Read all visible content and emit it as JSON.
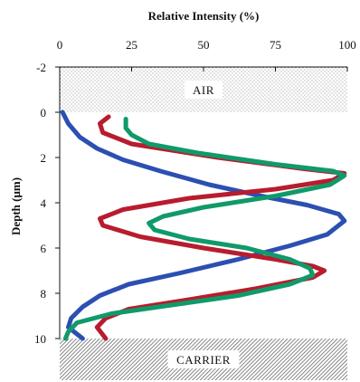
{
  "chart_data": {
    "type": "line",
    "title": "",
    "xlabel": "Relative Intensity (%)",
    "ylabel": "Depth (μm)",
    "xlim": [
      0,
      100
    ],
    "ylim": [
      -2,
      10
    ],
    "y_inverted": true,
    "x_axis_position": "top",
    "x_ticks": [
      "0",
      "25",
      "50",
      "75",
      "100"
    ],
    "y_ticks": [
      "-2",
      "0",
      "2",
      "4",
      "6",
      "8",
      "10"
    ],
    "grid": false,
    "legend": "none",
    "regions": [
      {
        "label": "AIR",
        "y0": -2,
        "y1": 0,
        "pattern": "dots"
      },
      {
        "label": "CARRIER",
        "y0": 10,
        "y1": 12,
        "pattern": "hatch"
      }
    ],
    "series": [
      {
        "color": "#2c4fb2",
        "points": [
          [
            1,
            0
          ],
          [
            3,
            0.5
          ],
          [
            7,
            1.1
          ],
          [
            13,
            1.6
          ],
          [
            22,
            2.1
          ],
          [
            35,
            2.6
          ],
          [
            52,
            3.2
          ],
          [
            70,
            3.7
          ],
          [
            86,
            4.1
          ],
          [
            97,
            4.5
          ],
          [
            99,
            4.8
          ],
          [
            93,
            5.4
          ],
          [
            80,
            5.9
          ],
          [
            62,
            6.5
          ],
          [
            42,
            7.1
          ],
          [
            24,
            7.6
          ],
          [
            14,
            8.1
          ],
          [
            8,
            8.6
          ],
          [
            4,
            9.1
          ],
          [
            3,
            9.5
          ],
          [
            6,
            9.8
          ],
          [
            8,
            10
          ]
        ]
      },
      {
        "color": "#b81c2e",
        "points": [
          [
            17,
            0.2
          ],
          [
            14,
            0.5
          ],
          [
            15,
            0.9
          ],
          [
            25,
            1.4
          ],
          [
            55,
            2.0
          ],
          [
            85,
            2.5
          ],
          [
            99,
            2.7
          ],
          [
            95,
            3.0
          ],
          [
            75,
            3.4
          ],
          [
            45,
            3.8
          ],
          [
            22,
            4.3
          ],
          [
            14,
            4.7
          ],
          [
            15,
            5.0
          ],
          [
            28,
            5.5
          ],
          [
            50,
            6.0
          ],
          [
            75,
            6.5
          ],
          [
            88,
            6.8
          ],
          [
            92,
            7.0
          ],
          [
            88,
            7.3
          ],
          [
            68,
            7.8
          ],
          [
            44,
            8.3
          ],
          [
            24,
            8.7
          ],
          [
            16,
            9.1
          ],
          [
            13,
            9.5
          ],
          [
            16,
            10
          ]
        ]
      },
      {
        "color": "#109a6a",
        "points": [
          [
            23,
            0.3
          ],
          [
            23,
            0.7
          ],
          [
            25,
            1.0
          ],
          [
            31,
            1.4
          ],
          [
            48,
            1.8
          ],
          [
            75,
            2.3
          ],
          [
            95,
            2.6
          ],
          [
            99,
            2.8
          ],
          [
            94,
            3.2
          ],
          [
            75,
            3.7
          ],
          [
            50,
            4.2
          ],
          [
            36,
            4.6
          ],
          [
            31,
            4.9
          ],
          [
            33,
            5.2
          ],
          [
            45,
            5.6
          ],
          [
            65,
            6.0
          ],
          [
            80,
            6.5
          ],
          [
            87,
            6.9
          ],
          [
            88,
            7.2
          ],
          [
            80,
            7.6
          ],
          [
            62,
            8.1
          ],
          [
            40,
            8.5
          ],
          [
            18,
            8.9
          ],
          [
            6,
            9.3
          ],
          [
            3,
            9.7
          ],
          [
            2,
            10
          ]
        ]
      }
    ]
  }
}
